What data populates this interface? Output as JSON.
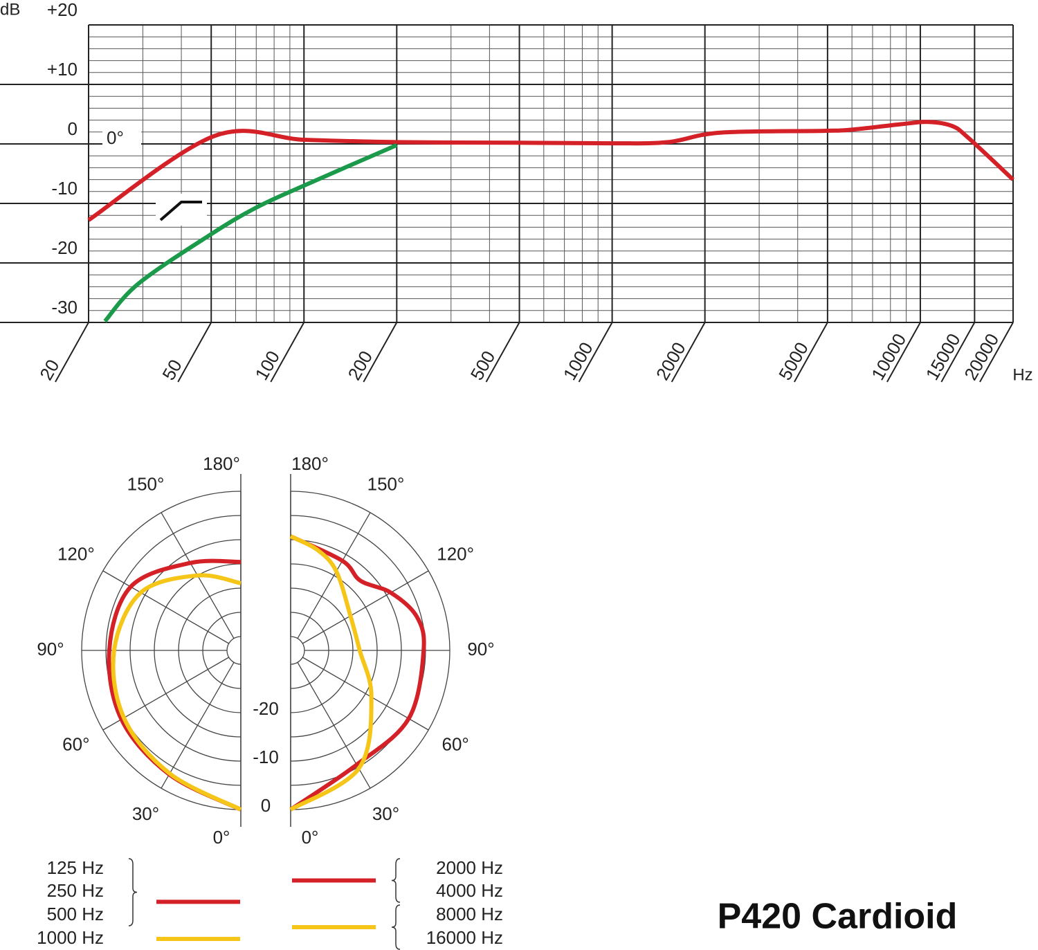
{
  "chart_data": [
    {
      "type": "line",
      "xscale": "log",
      "xlim": [
        20,
        20000
      ],
      "ylim": [
        -30,
        20
      ],
      "xticks": [
        20,
        50,
        100,
        200,
        500,
        1000,
        2000,
        5000,
        10000,
        15000,
        20000
      ],
      "yticks": [
        {
          "value": 20,
          "label": "+20"
        },
        {
          "value": 10,
          "label": "+10"
        },
        0,
        -10,
        -20,
        -30
      ],
      "xminor": [
        30,
        40,
        60,
        70,
        80,
        90,
        300,
        400,
        600,
        700,
        800,
        900,
        3000,
        4000,
        6000,
        7000,
        8000,
        9000
      ],
      "yminor": [
        -28,
        -26,
        -24,
        -22,
        -18,
        -16,
        -14,
        -12,
        -8,
        -6,
        -4,
        -2,
        2,
        4,
        6,
        8,
        12,
        14,
        16,
        18
      ],
      "ylabel": "dB",
      "xlabel": "Hz",
      "grid": true,
      "series": [
        {
          "name": "0°",
          "color": "#d42027",
          "x": [
            20,
            51,
            100,
            200,
            500,
            1000,
            1520,
            2240,
            4870,
            5990,
            8600,
            10600,
            12700,
            14400,
            20000
          ],
          "values": [
            -12.8,
            1.3,
            0.7,
            0.3,
            0.2,
            0.1,
            0.3,
            1.9,
            2.2,
            2.4,
            3.3,
            3.7,
            3.0,
            0.9,
            -6.0
          ]
        },
        {
          "color": "#1a9a4a",
          "x": [
            22.6,
            29,
            49.5,
            70,
            100,
            200
          ],
          "values": [
            -29.8,
            -23.5,
            -15.3,
            -10.7,
            -7,
            -0.2
          ]
        }
      ]
    },
    {
      "type": "polar",
      "rlim": [
        -30,
        0
      ],
      "rticks": [
        -20,
        -10,
        0
      ],
      "rminor": [
        -30,
        -25,
        -15,
        -5
      ],
      "angle_ticks": [
        {
          "value": 0,
          "label": "0°"
        },
        {
          "value": 30,
          "label": "30°"
        },
        {
          "value": 60,
          "label": "60°"
        },
        {
          "value": 90,
          "label": "90°"
        },
        {
          "value": 120,
          "label": "120°"
        },
        {
          "value": 150,
          "label": "150°"
        },
        {
          "value": 180,
          "label": "180°"
        }
      ],
      "panels": [
        {
          "side": "left",
          "series": [
            {
              "names": [
                "125 Hz",
                "250 Hz",
                "500 Hz"
              ],
              "color": "#d42027",
              "angles": [
                0,
                30,
                60,
                90,
                120,
                150,
                180
              ],
              "values": [
                0,
                -3.3,
                -4.4,
                -5.7,
                -6.6,
                -12,
                -14.6
              ]
            },
            {
              "names": [
                "1000 Hz"
              ],
              "color": "#f5c518",
              "angles": [
                0,
                30,
                60,
                90,
                120,
                150,
                180
              ],
              "values": [
                0,
                -3.5,
                -5,
                -6.7,
                -9,
                -15,
                -19
              ]
            }
          ]
        },
        {
          "side": "right",
          "series": [
            {
              "names": [
                "2000 Hz",
                "4000 Hz"
              ],
              "color": "#d42027",
              "angles": [
                0,
                30,
                60,
                90,
                105,
                120,
                135,
                150,
                180
              ],
              "values": [
                0,
                -5.6,
                -4.7,
                -5.4,
                -5.9,
                -9,
                -12.5,
                -11.5,
                -9.3
              ]
            },
            {
              "names": [
                "8000 Hz",
                "16000 Hz"
              ],
              "color": "#f5c518",
              "angles": [
                0,
                30,
                60,
                90,
                120,
                150,
                165,
                180
              ],
              "values": [
                0,
                -4.7,
                -13.6,
                -18.6,
                -18.6,
                -14,
                -11.4,
                -9.3
              ]
            }
          ]
        }
      ],
      "title": "P420 Cardioid"
    }
  ]
}
